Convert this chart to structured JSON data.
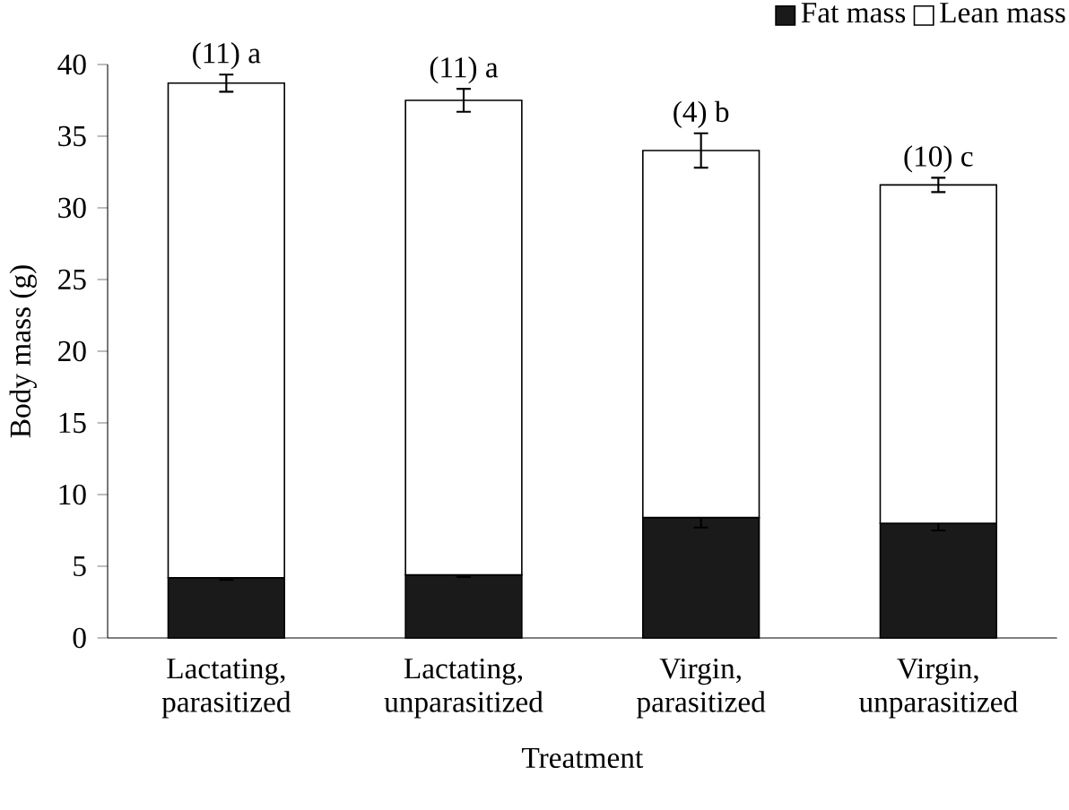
{
  "chart_data": {
    "type": "bar",
    "stacked": true,
    "xlabel": "Treatment",
    "ylabel": "Body mass (g)",
    "categories": [
      "Lactating, parasitized",
      "Lactating, unparasitized",
      "Virgin, parasitized",
      "Virgin, unparasitized"
    ],
    "series": [
      {
        "name": "Fat mass",
        "color": "#1a1a1a",
        "values": [
          4.2,
          4.4,
          8.4,
          8.0
        ],
        "errors": [
          0.15,
          0.15,
          0.7,
          0.5
        ]
      },
      {
        "name": "Lean mass",
        "color": "#ffffff",
        "values": [
          34.5,
          33.1,
          25.6,
          23.6
        ],
        "errors": [
          0.6,
          0.8,
          1.2,
          0.5
        ]
      }
    ],
    "ylim": [
      0,
      40
    ],
    "yticks": [
      0,
      5,
      10,
      15,
      20,
      25,
      30,
      35,
      40
    ],
    "legend": "top right",
    "annotations": [
      "(11) a",
      "(11) a",
      "(4) b",
      "(10) c"
    ]
  }
}
